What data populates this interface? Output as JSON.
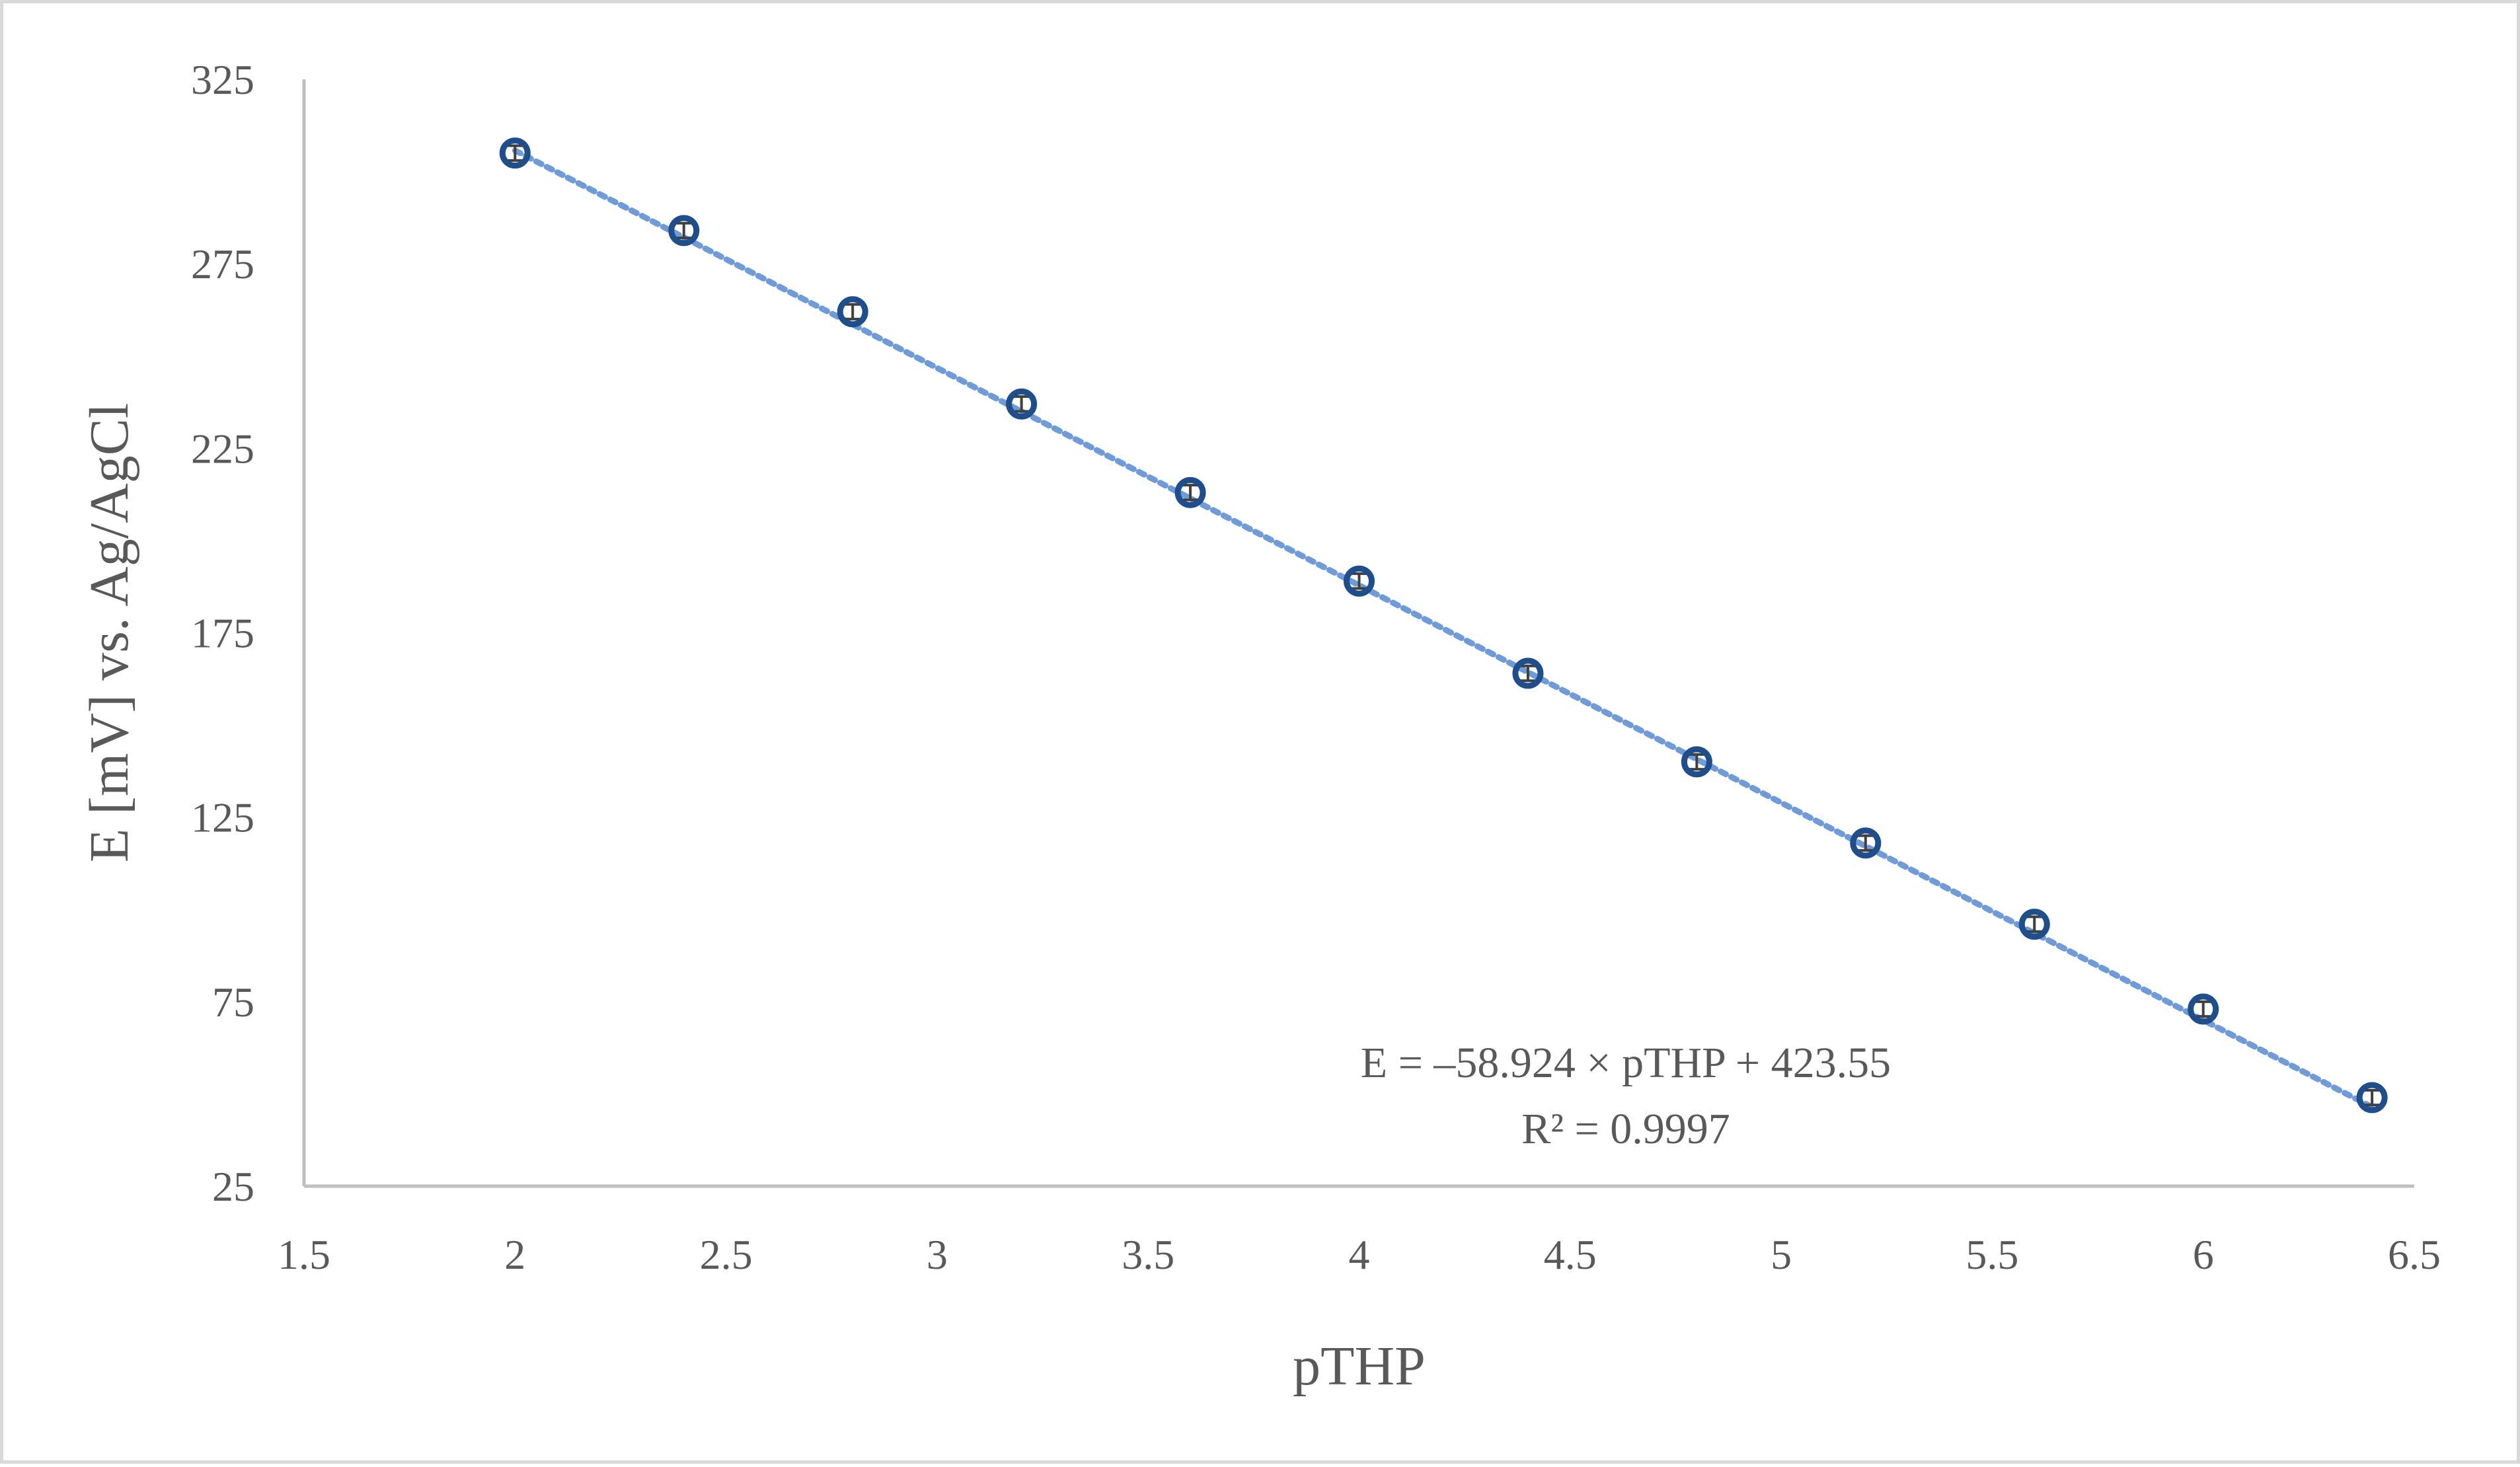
{
  "chart_data": {
    "type": "scatter",
    "title": "",
    "xlabel": "pTHP",
    "ylabel": "E [mV] vs. Ag/AgCl",
    "xlim": [
      1.5,
      6.5
    ],
    "ylim": [
      25,
      325
    ],
    "x_ticks": [
      "1.5",
      "2",
      "2.5",
      "3",
      "3.5",
      "4",
      "4.5",
      "5",
      "5.5",
      "6",
      "6.5"
    ],
    "y_ticks": [
      "25",
      "75",
      "125",
      "175",
      "225",
      "275",
      "325"
    ],
    "grid": false,
    "legend": "none",
    "marker_color": "#1f4e8c",
    "trendline_color": "#6f9bd8",
    "trendline": {
      "slope": -58.924,
      "intercept": 423.55,
      "style": "dotted"
    },
    "annotations": [
      "E = –58.924 × pTHP + 423.55",
      "R² = 0.9997"
    ],
    "series": [
      {
        "x": [
          2.0,
          2.4,
          2.8,
          3.2,
          3.6,
          4.0,
          4.4,
          4.8,
          5.2,
          5.6,
          6.0,
          6.4
        ],
        "y": [
          305,
          284,
          262,
          237,
          213,
          189,
          164,
          140,
          118,
          96,
          73,
          49
        ],
        "error": [
          2,
          2,
          2,
          2,
          2,
          2,
          2,
          2,
          2,
          2,
          2,
          2
        ]
      }
    ]
  }
}
